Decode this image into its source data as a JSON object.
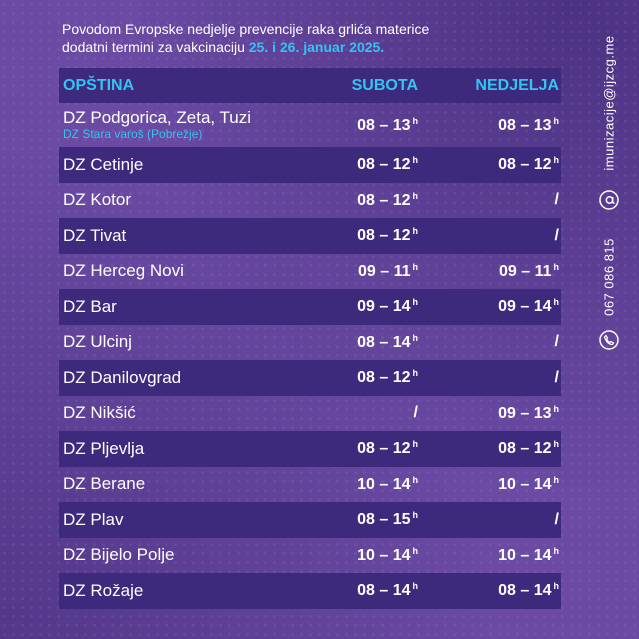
{
  "heading": {
    "line1": "Povodom Evropske nedjelje prevencije raka grlića materice",
    "line2_prefix": "dodatni termini za vakcinaciju ",
    "line2_date": "25. i 26. januar 2025."
  },
  "table": {
    "headers": {
      "municipality": "OPŠTINA",
      "saturday": "SUBOTA",
      "sunday": "NEDJELJA"
    },
    "rows": [
      {
        "name": "DZ Podgorica, Zeta, Tuzi",
        "sub": "DZ Stara varoš (Pobrežje)",
        "sat": "08 – 13",
        "sun": "08 – 13"
      },
      {
        "name": "DZ Cetinje",
        "sat": "08 – 12",
        "sun": "08 – 12"
      },
      {
        "name": "DZ Kotor",
        "sat": "08 – 12",
        "sun": "/"
      },
      {
        "name": "DZ Tivat",
        "sat": "08 – 12",
        "sun": "/"
      },
      {
        "name": "DZ Herceg Novi",
        "sat": "09 – 11",
        "sun": "09 – 11"
      },
      {
        "name": "DZ Bar",
        "sat": "09 – 14",
        "sun": "09 – 14"
      },
      {
        "name": "DZ Ulcinj",
        "sat": "08 – 14",
        "sun": "/"
      },
      {
        "name": "DZ Danilovgrad",
        "sat": "08 – 12",
        "sun": "/"
      },
      {
        "name": "DZ Nikšić",
        "sat": "/",
        "sun": "09 – 13"
      },
      {
        "name": "DZ Pljevlja",
        "sat": "08 – 12",
        "sun": "08 – 12"
      },
      {
        "name": "DZ Berane",
        "sat": "10 – 14",
        "sun": "10 – 14"
      },
      {
        "name": "DZ Plav",
        "sat": "08 – 15",
        "sun": "/"
      },
      {
        "name": "DZ Bijelo Polje",
        "sat": "10 – 14",
        "sun": "10 – 14"
      },
      {
        "name": "DZ Rožaje",
        "sat": "08 – 14",
        "sun": "08 – 14"
      }
    ],
    "hour_suffix": "h"
  },
  "sidebar": {
    "email": "imunizacije@ijzcg.me",
    "phone": "067 086 815",
    "email_icon": "at-icon",
    "phone_icon": "phone-icon"
  },
  "colors": {
    "background": "#6a4aa3",
    "row_dark": "#3d2a7d",
    "accent": "#35c3f2",
    "text": "#ffffff"
  }
}
